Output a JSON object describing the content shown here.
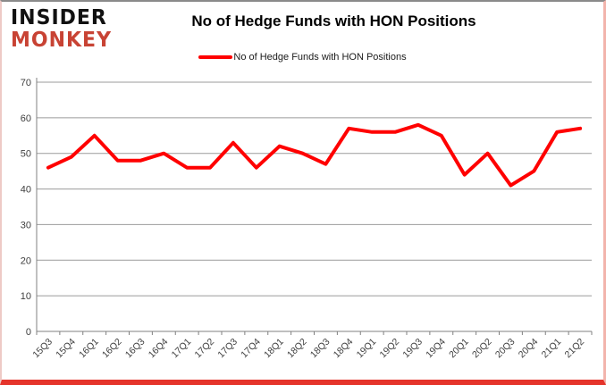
{
  "logo": {
    "line1": "INSIDER",
    "line2": "MONKEY"
  },
  "header": {
    "title": "No of Hedge Funds with HON Positions"
  },
  "legend": {
    "label": "No of Hedge Funds with HON Positions"
  },
  "colors": {
    "series_red": "#ff0000",
    "gridline": "#9b9b9b",
    "axis": "#808080",
    "tick_label": "#404040",
    "logo_black": "#111111",
    "logo_red": "#c84334",
    "border_bottom_red": "#e5342b"
  },
  "chart_data": {
    "type": "line",
    "title": "No of Hedge Funds with HON Positions",
    "categories": [
      "15Q3",
      "15Q4",
      "16Q1",
      "16Q2",
      "16Q3",
      "16Q4",
      "17Q1",
      "17Q2",
      "17Q3",
      "17Q4",
      "18Q1",
      "18Q2",
      "18Q3",
      "18Q4",
      "19Q1",
      "19Q2",
      "19Q3",
      "19Q4",
      "20Q1",
      "20Q2",
      "20Q3",
      "20Q4",
      "21Q1",
      "21Q2"
    ],
    "series": [
      {
        "name": "No of Hedge Funds with HON Positions",
        "color": "#ff0000",
        "values": [
          46,
          49,
          55,
          48,
          48,
          50,
          46,
          46,
          53,
          46,
          52,
          50,
          47,
          57,
          56,
          56,
          58,
          55,
          44,
          50,
          41,
          45,
          56,
          57
        ]
      }
    ],
    "xlabel": "",
    "ylabel": "",
    "ylim": [
      0,
      70
    ],
    "ytick_step": 10,
    "grid": true,
    "legend_position": "top"
  }
}
